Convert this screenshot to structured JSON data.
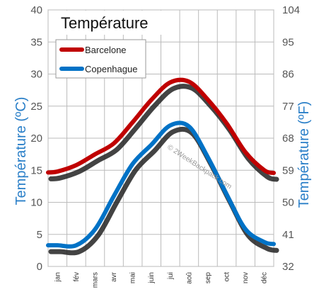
{
  "chart_data": {
    "type": "line",
    "title": "Température",
    "categories": [
      "jan",
      "fév",
      "mars",
      "avr",
      "mai",
      "juin",
      "jui",
      "aoû",
      "sep",
      "oct",
      "nov",
      "déc"
    ],
    "y_left": {
      "label": "Température (ºC)",
      "ylim": [
        0,
        40
      ],
      "ticks": [
        0,
        5,
        10,
        15,
        20,
        25,
        30,
        35,
        40
      ]
    },
    "y_right": {
      "label": "Température (ºF)",
      "ylim": [
        32,
        104
      ],
      "ticks": [
        32,
        41,
        50,
        59,
        68,
        77,
        86,
        95,
        104
      ]
    },
    "grid": true,
    "legend": "top-left",
    "series": [
      {
        "name": "Barcelone",
        "color": "#c00000",
        "values": [
          14.8,
          15.8,
          17.5,
          19.2,
          22.5,
          26.0,
          28.7,
          28.8,
          26.0,
          22.3,
          17.8,
          15.0
        ]
      },
      {
        "name": "Copenhague",
        "color": "#0072c6",
        "values": [
          3.3,
          3.3,
          5.8,
          11.0,
          16.0,
          19.0,
          22.0,
          21.8,
          17.0,
          11.2,
          5.8,
          3.8
        ]
      }
    ],
    "watermark": "© 2WeekBackpack.com"
  }
}
